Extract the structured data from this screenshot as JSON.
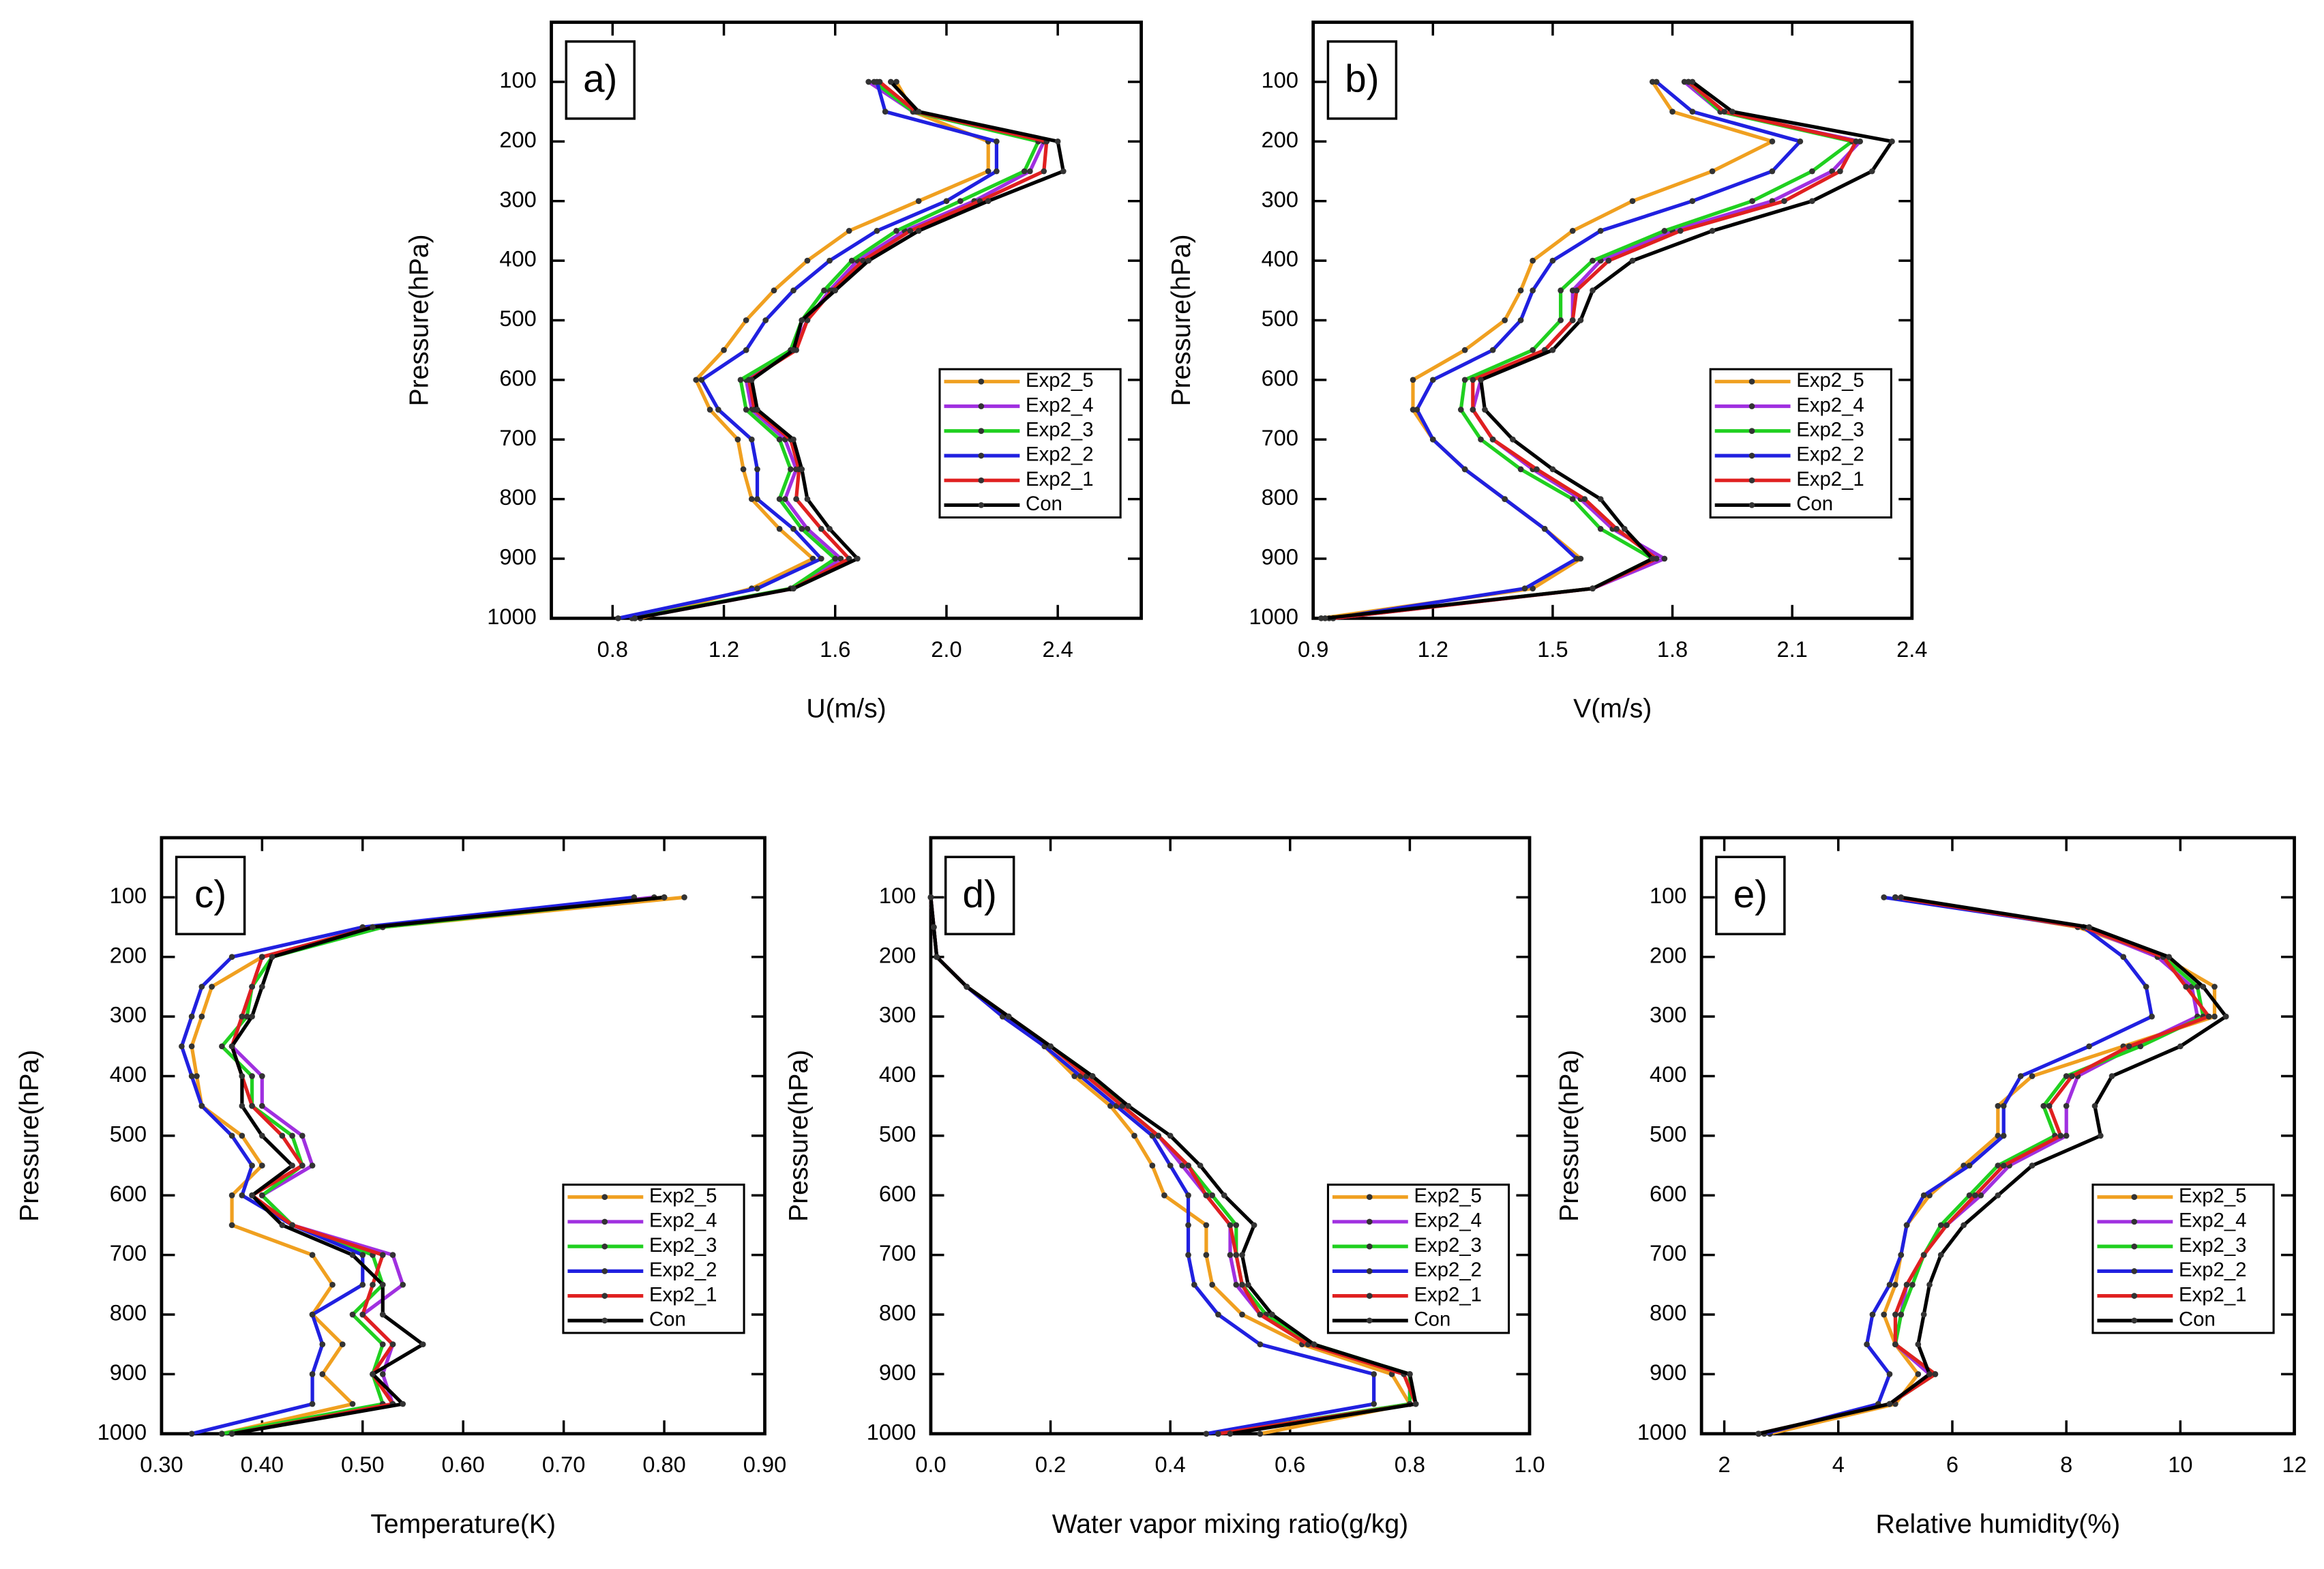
{
  "chart_data": [
    {
      "type": "line",
      "label": "a)",
      "xlabel": "U(m/s)",
      "ylabel": "Pressure(hPa)",
      "y": [
        100,
        150,
        200,
        250,
        300,
        350,
        400,
        450,
        500,
        550,
        600,
        650,
        700,
        750,
        800,
        850,
        900,
        950,
        1000
      ],
      "xlim": [
        0.58,
        2.7
      ],
      "xticks": [
        0.8,
        1.2,
        1.6,
        {
          "value": 2,
          "label": "2.0"
        },
        2.4
      ],
      "ylim": [
        1000,
        0
      ],
      "yticks": [
        100,
        200,
        300,
        400,
        500,
        600,
        700,
        800,
        900,
        1000
      ],
      "legend": "lower right",
      "series": [
        {
          "name": "Exp2_5",
          "color": "#f0a020",
          "values": [
            1.82,
            1.88,
            2.15,
            2.15,
            1.9,
            1.65,
            1.5,
            1.38,
            1.28,
            1.2,
            1.1,
            1.15,
            1.25,
            1.27,
            1.3,
            1.4,
            1.52,
            1.3,
            0.9
          ]
        },
        {
          "name": "Exp2_4",
          "color": "#a030e0",
          "values": [
            1.72,
            1.88,
            2.35,
            2.3,
            2.1,
            1.85,
            1.68,
            1.58,
            1.5,
            1.45,
            1.28,
            1.3,
            1.42,
            1.46,
            1.42,
            1.5,
            1.62,
            1.45,
            0.88
          ]
        },
        {
          "name": "Exp2_3",
          "color": "#20d020",
          "values": [
            1.74,
            1.88,
            2.33,
            2.28,
            2.05,
            1.82,
            1.66,
            1.56,
            1.48,
            1.44,
            1.26,
            1.28,
            1.4,
            1.44,
            1.4,
            1.48,
            1.6,
            1.44,
            0.87
          ]
        },
        {
          "name": "Exp2_2",
          "color": "#2020e0",
          "values": [
            1.75,
            1.78,
            2.18,
            2.18,
            2.0,
            1.75,
            1.58,
            1.45,
            1.35,
            1.28,
            1.12,
            1.18,
            1.3,
            1.32,
            1.32,
            1.45,
            1.55,
            1.32,
            0.82
          ]
        },
        {
          "name": "Exp2_1",
          "color": "#e02020",
          "values": [
            1.76,
            1.89,
            2.36,
            2.35,
            2.12,
            1.87,
            1.7,
            1.59,
            1.5,
            1.46,
            1.29,
            1.31,
            1.44,
            1.47,
            1.46,
            1.55,
            1.65,
            1.45,
            0.88
          ]
        },
        {
          "name": "Con",
          "color": "#000000",
          "values": [
            1.8,
            1.9,
            2.4,
            2.42,
            2.15,
            1.9,
            1.72,
            1.6,
            1.48,
            1.45,
            1.3,
            1.32,
            1.45,
            1.48,
            1.5,
            1.58,
            1.68,
            1.45,
            0.88
          ]
        }
      ]
    },
    {
      "type": "line",
      "label": "b)",
      "xlabel": "V(m/s)",
      "ylabel": "Pressure(hPa)",
      "y": [
        100,
        150,
        200,
        250,
        300,
        350,
        400,
        450,
        500,
        550,
        600,
        650,
        700,
        750,
        800,
        850,
        900,
        950,
        1000
      ],
      "xlim": [
        0.9,
        2.4
      ],
      "xticks": [
        0.9,
        1.2,
        1.5,
        1.8,
        2.1,
        2.4
      ],
      "ylim": [
        1000,
        0
      ],
      "yticks": [
        100,
        200,
        300,
        400,
        500,
        600,
        700,
        800,
        900,
        1000
      ],
      "legend": "lower right",
      "series": [
        {
          "name": "Exp2_5",
          "color": "#f0a020",
          "values": [
            1.75,
            1.8,
            2.05,
            1.9,
            1.7,
            1.55,
            1.45,
            1.42,
            1.38,
            1.28,
            1.15,
            1.15,
            1.2,
            1.28,
            1.38,
            1.48,
            1.57,
            1.45,
            0.92
          ]
        },
        {
          "name": "Exp2_4",
          "color": "#a030e0",
          "values": [
            1.83,
            1.92,
            2.27,
            2.2,
            2.05,
            1.8,
            1.62,
            1.55,
            1.55,
            1.48,
            1.32,
            1.3,
            1.35,
            1.45,
            1.57,
            1.65,
            1.78,
            1.6,
            0.95
          ]
        },
        {
          "name": "Exp2_3",
          "color": "#20d020",
          "values": [
            1.84,
            1.92,
            2.25,
            2.15,
            2.0,
            1.78,
            1.6,
            1.52,
            1.52,
            1.45,
            1.28,
            1.27,
            1.32,
            1.42,
            1.55,
            1.62,
            1.75,
            1.6,
            0.94
          ]
        },
        {
          "name": "Exp2_2",
          "color": "#2020e0",
          "values": [
            1.76,
            1.85,
            2.12,
            2.05,
            1.85,
            1.62,
            1.5,
            1.45,
            1.42,
            1.35,
            1.2,
            1.16,
            1.2,
            1.28,
            1.38,
            1.48,
            1.56,
            1.43,
            0.95
          ]
        },
        {
          "name": "Exp2_1",
          "color": "#e02020",
          "values": [
            1.84,
            1.93,
            2.26,
            2.22,
            2.08,
            1.82,
            1.64,
            1.56,
            1.55,
            1.48,
            1.3,
            1.3,
            1.35,
            1.46,
            1.58,
            1.66,
            1.76,
            1.6,
            0.95
          ]
        },
        {
          "name": "Con",
          "color": "#000000",
          "values": [
            1.85,
            1.95,
            2.35,
            2.3,
            2.15,
            1.9,
            1.7,
            1.6,
            1.57,
            1.5,
            1.32,
            1.33,
            1.4,
            1.5,
            1.62,
            1.68,
            1.75,
            1.6,
            0.93
          ]
        }
      ]
    },
    {
      "type": "line",
      "label": "c)",
      "xlabel": "Temperature(K)",
      "ylabel": "Pressure(hPa)",
      "y": [
        100,
        150,
        200,
        250,
        300,
        350,
        400,
        450,
        500,
        550,
        600,
        650,
        700,
        750,
        800,
        850,
        900,
        950,
        1000
      ],
      "xlim": [
        0.3,
        0.9
      ],
      "xticks": [
        {
          "value": 0.3,
          "label": "0.30"
        },
        {
          "value": 0.4,
          "label": "0.40"
        },
        {
          "value": 0.5,
          "label": "0.50"
        },
        {
          "value": 0.6,
          "label": "0.60"
        },
        {
          "value": 0.7,
          "label": "0.70"
        },
        {
          "value": 0.8,
          "label": "0.80"
        },
        {
          "value": 0.9,
          "label": "0.90"
        }
      ],
      "ylim": [
        1000,
        0
      ],
      "yticks": [
        100,
        200,
        300,
        400,
        500,
        600,
        700,
        800,
        900,
        1000
      ],
      "legend": "lower right",
      "series": [
        {
          "name": "Exp2_5",
          "color": "#f0a020",
          "values": [
            0.82,
            0.52,
            0.4,
            0.35,
            0.34,
            0.33,
            0.335,
            0.34,
            0.38,
            0.4,
            0.37,
            0.37,
            0.45,
            0.47,
            0.45,
            0.48,
            0.46,
            0.49,
            0.36
          ]
        },
        {
          "name": "Exp2_4",
          "color": "#a030e0",
          "values": [
            0.79,
            0.51,
            0.4,
            0.39,
            0.38,
            0.37,
            0.4,
            0.4,
            0.44,
            0.45,
            0.4,
            0.43,
            0.53,
            0.54,
            0.5,
            0.53,
            0.52,
            0.53,
            0.36
          ]
        },
        {
          "name": "Exp2_3",
          "color": "#20d020",
          "values": [
            0.8,
            0.52,
            0.41,
            0.39,
            0.385,
            0.36,
            0.39,
            0.39,
            0.43,
            0.44,
            0.4,
            0.43,
            0.51,
            0.52,
            0.49,
            0.52,
            0.51,
            0.52,
            0.36
          ]
        },
        {
          "name": "Exp2_2",
          "color": "#2020e0",
          "values": [
            0.77,
            0.5,
            0.37,
            0.34,
            0.33,
            0.32,
            0.33,
            0.34,
            0.37,
            0.39,
            0.38,
            0.43,
            0.5,
            0.5,
            0.45,
            0.46,
            0.45,
            0.45,
            0.33
          ]
        },
        {
          "name": "Exp2_1",
          "color": "#e02020",
          "values": [
            0.8,
            0.51,
            0.4,
            0.39,
            0.38,
            0.37,
            0.38,
            0.39,
            0.42,
            0.44,
            0.39,
            0.43,
            0.52,
            0.51,
            0.5,
            0.53,
            0.51,
            0.53,
            0.37
          ]
        },
        {
          "name": "Con",
          "color": "#000000",
          "values": [
            0.8,
            0.51,
            0.41,
            0.4,
            0.39,
            0.37,
            0.38,
            0.38,
            0.4,
            0.43,
            0.39,
            0.42,
            0.49,
            0.52,
            0.52,
            0.56,
            0.51,
            0.54,
            0.37
          ]
        }
      ]
    },
    {
      "type": "line",
      "label": "d)",
      "xlabel": "Water vapor mixing ratio(g/kg)",
      "ylabel": "Pressure(hPa)",
      "y": [
        100,
        150,
        200,
        250,
        300,
        350,
        400,
        450,
        500,
        550,
        600,
        650,
        700,
        750,
        800,
        850,
        900,
        950,
        1000
      ],
      "xlim": [
        0,
        1
      ],
      "xticks": [
        {
          "value": 0,
          "label": "0.0"
        },
        0.2,
        0.4,
        0.6,
        0.8,
        {
          "value": 1,
          "label": "1.0"
        }
      ],
      "ylim": [
        1000,
        0
      ],
      "yticks": [
        100,
        200,
        300,
        400,
        500,
        600,
        700,
        800,
        900,
        1000
      ],
      "legend": "lower right",
      "series": [
        {
          "name": "Exp2_5",
          "color": "#f0a020",
          "values": [
            0,
            0.005,
            0.01,
            0.06,
            0.12,
            0.19,
            0.24,
            0.3,
            0.34,
            0.37,
            0.39,
            0.46,
            0.46,
            0.47,
            0.52,
            0.62,
            0.77,
            0.8,
            0.55
          ]
        },
        {
          "name": "Exp2_4",
          "color": "#a030e0",
          "values": [
            0,
            0.005,
            0.01,
            0.06,
            0.13,
            0.2,
            0.27,
            0.32,
            0.38,
            0.42,
            0.46,
            0.5,
            0.5,
            0.51,
            0.55,
            0.63,
            0.8,
            0.8,
            0.48
          ]
        },
        {
          "name": "Exp2_3",
          "color": "#20d020",
          "values": [
            0,
            0.005,
            0.01,
            0.06,
            0.13,
            0.2,
            0.27,
            0.32,
            0.38,
            0.43,
            0.47,
            0.51,
            0.51,
            0.52,
            0.56,
            0.64,
            0.8,
            0.8,
            0.48
          ]
        },
        {
          "name": "Exp2_2",
          "color": "#2020e0",
          "values": [
            0,
            0.005,
            0.01,
            0.06,
            0.12,
            0.19,
            0.25,
            0.31,
            0.37,
            0.4,
            0.43,
            0.43,
            0.43,
            0.44,
            0.48,
            0.55,
            0.74,
            0.74,
            0.46
          ]
        },
        {
          "name": "Exp2_1",
          "color": "#e02020",
          "values": [
            0,
            0.005,
            0.01,
            0.06,
            0.13,
            0.2,
            0.26,
            0.32,
            0.38,
            0.43,
            0.46,
            0.5,
            0.51,
            0.52,
            0.55,
            0.63,
            0.79,
            0.81,
            0.48
          ]
        },
        {
          "name": "Con",
          "color": "#000000",
          "values": [
            0,
            0.005,
            0.01,
            0.06,
            0.13,
            0.2,
            0.27,
            0.33,
            0.4,
            0.45,
            0.49,
            0.54,
            0.52,
            0.53,
            0.57,
            0.64,
            0.8,
            0.81,
            0.5
          ]
        }
      ]
    },
    {
      "type": "line",
      "label": "e)",
      "xlabel": "Relative humidity(%)",
      "ylabel": "Pressure(hPa)",
      "y": [
        100,
        150,
        200,
        250,
        300,
        350,
        400,
        450,
        500,
        550,
        600,
        650,
        700,
        750,
        800,
        850,
        900,
        950,
        1000
      ],
      "xlim": [
        1.6,
        12
      ],
      "xticks": [
        2,
        4,
        6,
        8,
        10,
        12
      ],
      "ylim": [
        1000,
        0
      ],
      "yticks": [
        100,
        200,
        300,
        400,
        500,
        600,
        700,
        800,
        900,
        1000
      ],
      "legend": "lower right",
      "series": [
        {
          "name": "Exp2_5",
          "color": "#f0a020",
          "values": [
            5.0,
            8.2,
            9.7,
            10.6,
            10.6,
            9.0,
            7.4,
            6.8,
            6.8,
            6.2,
            5.6,
            5.2,
            5.1,
            5.0,
            4.8,
            5.0,
            5.4,
            5.0,
            2.8
          ]
        },
        {
          "name": "Exp2_4",
          "color": "#a030e0",
          "values": [
            5.0,
            8.3,
            9.6,
            10.2,
            10.3,
            9.2,
            8.2,
            8.0,
            8.0,
            7.0,
            6.5,
            5.9,
            5.5,
            5.2,
            5.1,
            5.0,
            5.6,
            4.9,
            2.6
          ]
        },
        {
          "name": "Exp2_3",
          "color": "#20d020",
          "values": [
            5.0,
            8.3,
            9.7,
            10.3,
            10.4,
            9.3,
            8.0,
            7.6,
            7.8,
            6.8,
            6.3,
            5.8,
            5.5,
            5.3,
            5.1,
            5.0,
            5.7,
            4.9,
            2.6
          ]
        },
        {
          "name": "Exp2_2",
          "color": "#2020e0",
          "values": [
            4.8,
            8.3,
            9.0,
            9.4,
            9.5,
            8.4,
            7.2,
            6.9,
            6.9,
            6.3,
            5.5,
            5.2,
            5.1,
            4.9,
            4.6,
            4.5,
            4.9,
            4.7,
            2.7
          ]
        },
        {
          "name": "Exp2_1",
          "color": "#e02020",
          "values": [
            5.0,
            8.3,
            9.7,
            10.1,
            10.5,
            9.1,
            8.1,
            7.7,
            7.9,
            6.9,
            6.4,
            5.9,
            5.5,
            5.2,
            5.0,
            5.0,
            5.7,
            4.9,
            2.6
          ]
        },
        {
          "name": "Con",
          "color": "#000000",
          "values": [
            5.1,
            8.4,
            9.8,
            10.4,
            10.8,
            10.0,
            8.8,
            8.5,
            8.6,
            7.4,
            6.8,
            6.2,
            5.8,
            5.6,
            5.5,
            5.4,
            5.6,
            4.9,
            2.6
          ]
        }
      ]
    }
  ]
}
